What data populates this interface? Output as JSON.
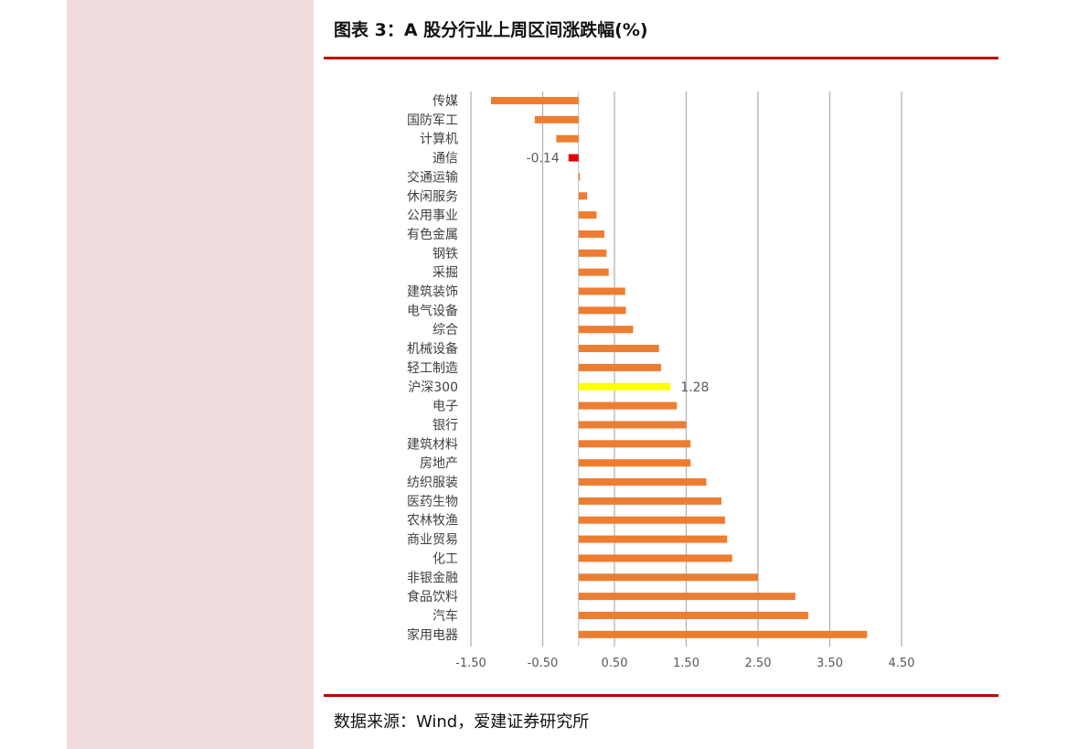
{
  "page": {
    "title": "图表 3：A 股分行业上周区间涨跌幅(%)",
    "source": "数据来源：Wind，爱建证券研究所"
  },
  "colors": {
    "bar_default": "#ed7d31",
    "bar_highlight_negative": "#e00000",
    "bar_benchmark": "#ffff00",
    "rule": "#c00000",
    "grid": "#b3b3b3",
    "left_band": "#f0dcdc"
  },
  "chart_data": {
    "type": "bar",
    "orientation": "horizontal",
    "xlim": [
      -1.5,
      4.5
    ],
    "xticks": [
      -1.5,
      -0.5,
      0.5,
      1.5,
      2.5,
      3.5,
      4.5
    ],
    "xtick_labels": [
      "-1.50",
      "-0.50",
      "0.50",
      "1.50",
      "2.50",
      "3.50",
      "4.50"
    ],
    "grid": true,
    "categories": [
      "传媒",
      "国防军工",
      "计算机",
      "通信",
      "交通运输",
      "休闲服务",
      "公用事业",
      "有色金属",
      "钢铁",
      "采掘",
      "建筑装饰",
      "电气设备",
      "综合",
      "机械设备",
      "轻工制造",
      "沪深300",
      "电子",
      "银行",
      "建筑材料",
      "房地产",
      "纺织服装",
      "医药生物",
      "农林牧渔",
      "商业贸易",
      "化工",
      "非银金融",
      "食品饮料",
      "汽车",
      "家用电器"
    ],
    "values": [
      -1.22,
      -0.61,
      -0.31,
      -0.14,
      0.02,
      0.12,
      0.25,
      0.36,
      0.39,
      0.42,
      0.65,
      0.66,
      0.76,
      1.12,
      1.15,
      1.28,
      1.37,
      1.5,
      1.56,
      1.56,
      1.78,
      1.99,
      2.04,
      2.07,
      2.14,
      2.5,
      3.02,
      3.2,
      4.02
    ],
    "highlights": [
      {
        "category": "通信",
        "color": "#e00000",
        "label": "-0.14"
      },
      {
        "category": "沪深300",
        "color": "#ffff00",
        "label": "1.28"
      }
    ]
  }
}
